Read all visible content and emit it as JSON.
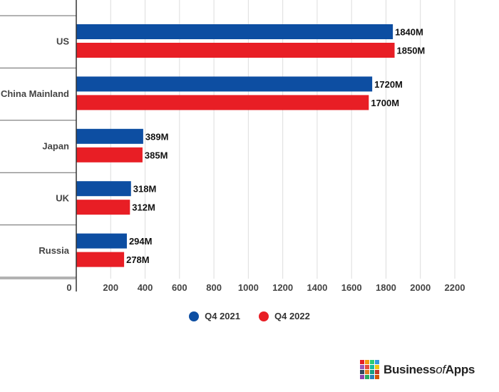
{
  "chart_data": {
    "type": "bar",
    "orientation": "horizontal",
    "categories": [
      "US",
      "China Mainland",
      "Japan",
      "UK",
      "Russia"
    ],
    "series": [
      {
        "name": "Q4 2021",
        "color": "#0d4ea2",
        "values": [
          1840,
          1720,
          389,
          318,
          294
        ],
        "labels": [
          "1840M",
          "1720M",
          "389M",
          "318M",
          "294M"
        ]
      },
      {
        "name": "Q4 2022",
        "color": "#e81e25",
        "values": [
          1850,
          1700,
          385,
          312,
          278
        ],
        "labels": [
          "1850M",
          "1700M",
          "385M",
          "312M",
          "278M"
        ]
      }
    ],
    "xlim": [
      0,
      2200
    ],
    "xticks": [
      "0",
      "200",
      "400",
      "600",
      "800",
      "1000",
      "1200",
      "1400",
      "1600",
      "1800",
      "2000",
      "2200"
    ],
    "grid": true,
    "legend_position": "bottom-center"
  },
  "brand": {
    "name_part1": "Business",
    "name_part2": "of",
    "name_part3": "Apps",
    "icon": "businessofapps-grid-logo",
    "grid_colors": [
      "#e81e25",
      "#f39c12",
      "#2ecc71",
      "#3498db",
      "#9b59b6",
      "#e74c3c",
      "#1abc9c",
      "#f1c40f",
      "#34495e",
      "#e67e22",
      "#16a085",
      "#c0392b",
      "#8e44ad",
      "#27ae60",
      "#2980b9",
      "#d35400"
    ]
  }
}
